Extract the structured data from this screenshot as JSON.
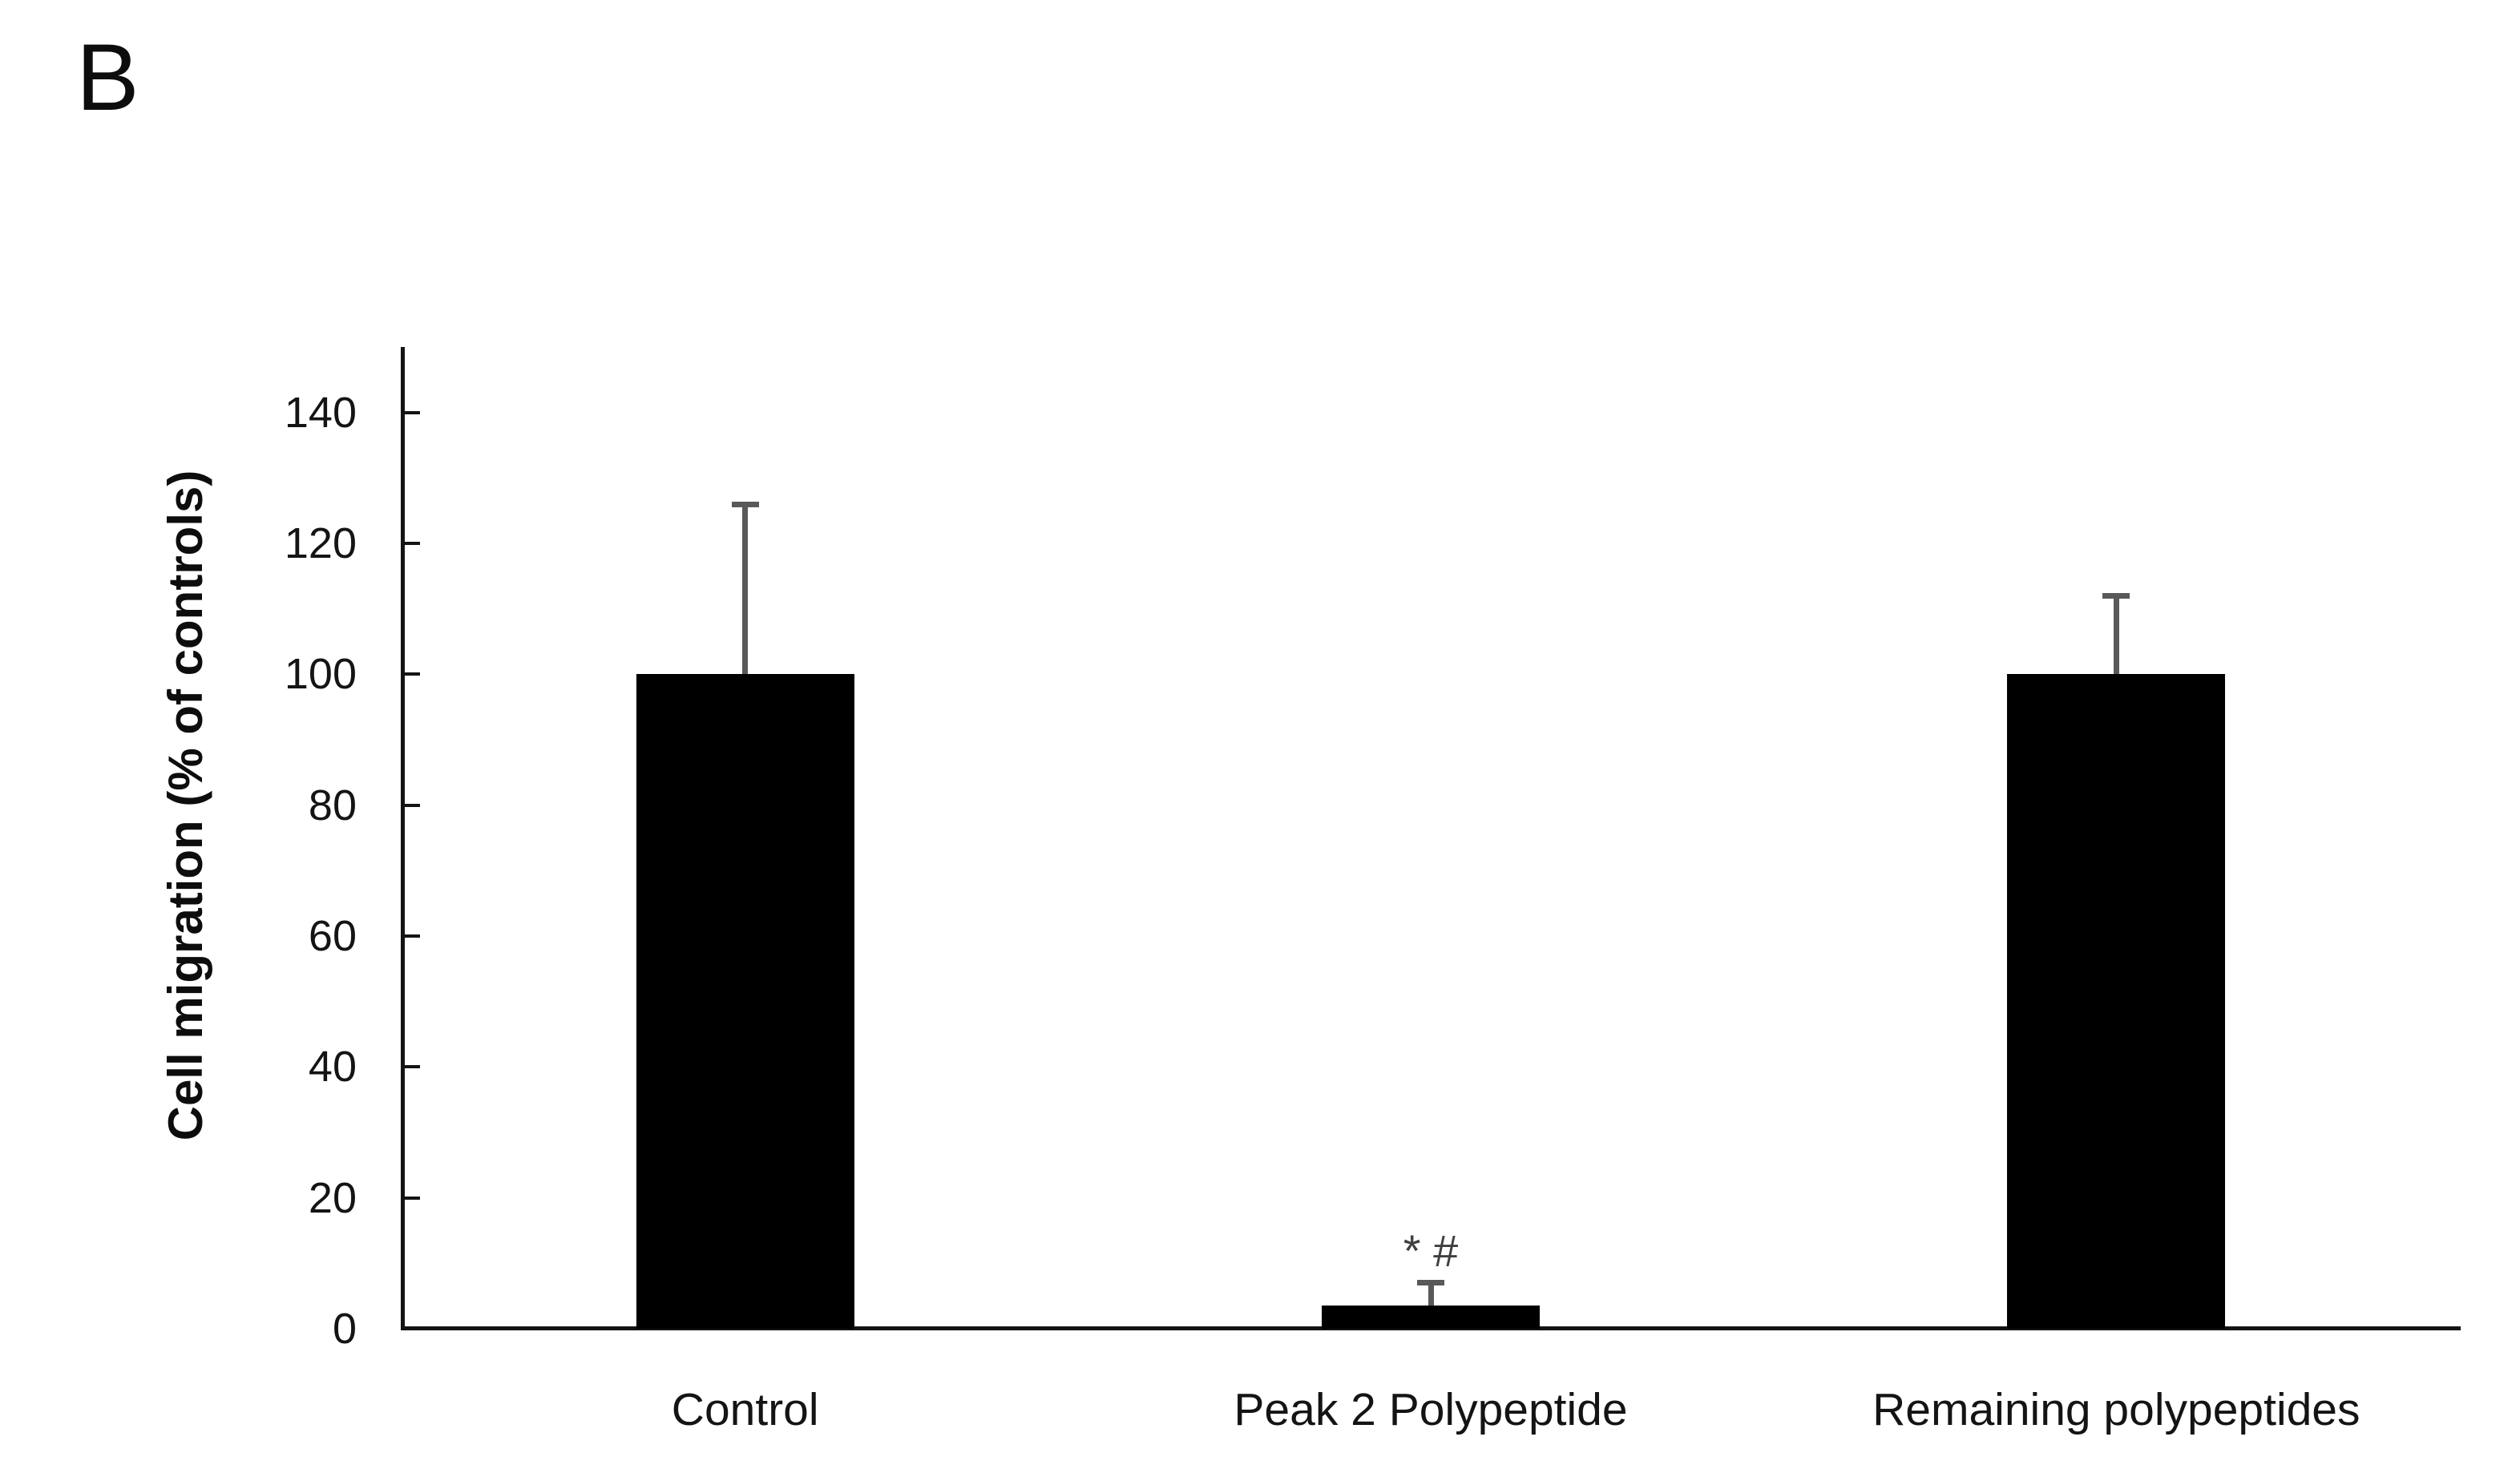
{
  "panel_label": "B",
  "chart_data": {
    "type": "bar",
    "title": "",
    "xlabel": "",
    "ylabel": "Cell migration (% of controls)",
    "categories": [
      "Control",
      "Peak 2 Polypeptide",
      "Remaining polypeptides"
    ],
    "values": [
      100,
      3.5,
      100
    ],
    "error_plus": [
      26,
      3.5,
      12
    ],
    "annotations": [
      "",
      "* #",
      ""
    ],
    "yticks": [
      0,
      20,
      40,
      60,
      80,
      100,
      120,
      140
    ],
    "ylim": [
      0,
      150
    ],
    "grid": false,
    "legend": "none",
    "bar_color": "#000000",
    "error_bar_color": "#595959",
    "axis_color": "#141414",
    "text_color": "#141414",
    "annotation_color": "#3f3f3f"
  }
}
